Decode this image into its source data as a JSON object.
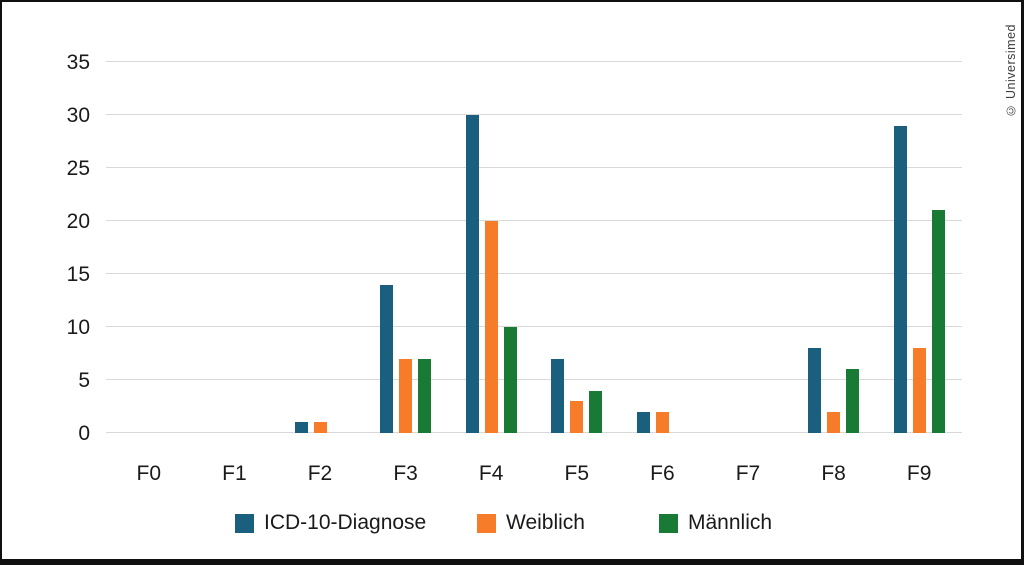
{
  "credit": "© Universimed",
  "colors": {
    "series_blue": "#1a5f7e",
    "series_orange": "#f77c2a",
    "series_green": "#187a34",
    "gridline": "#d9d9d9",
    "text": "#1a1a1a",
    "frame_border": "#101010"
  },
  "chart_data": {
    "type": "bar",
    "title": "",
    "xlabel": "",
    "ylabel": "",
    "categories": [
      "F0",
      "F1",
      "F2",
      "F3",
      "F4",
      "F5",
      "F6",
      "F7",
      "F8",
      "F9"
    ],
    "series": [
      {
        "name": "ICD-10-Diagnose",
        "color": "#1a5f7e",
        "values": [
          0,
          0,
          1,
          14,
          30,
          7,
          2,
          0,
          8,
          29
        ]
      },
      {
        "name": "Weiblich",
        "color": "#f77c2a",
        "values": [
          0,
          0,
          1,
          7,
          20,
          3,
          2,
          0,
          2,
          8
        ]
      },
      {
        "name": "Männlich",
        "color": "#187a34",
        "values": [
          0,
          0,
          0,
          7,
          10,
          4,
          0,
          0,
          6,
          21
        ]
      }
    ],
    "ylim": [
      0,
      35
    ],
    "yticks": [
      0,
      5,
      10,
      15,
      20,
      25,
      30,
      35
    ],
    "grid": true,
    "legend_position": "bottom"
  }
}
